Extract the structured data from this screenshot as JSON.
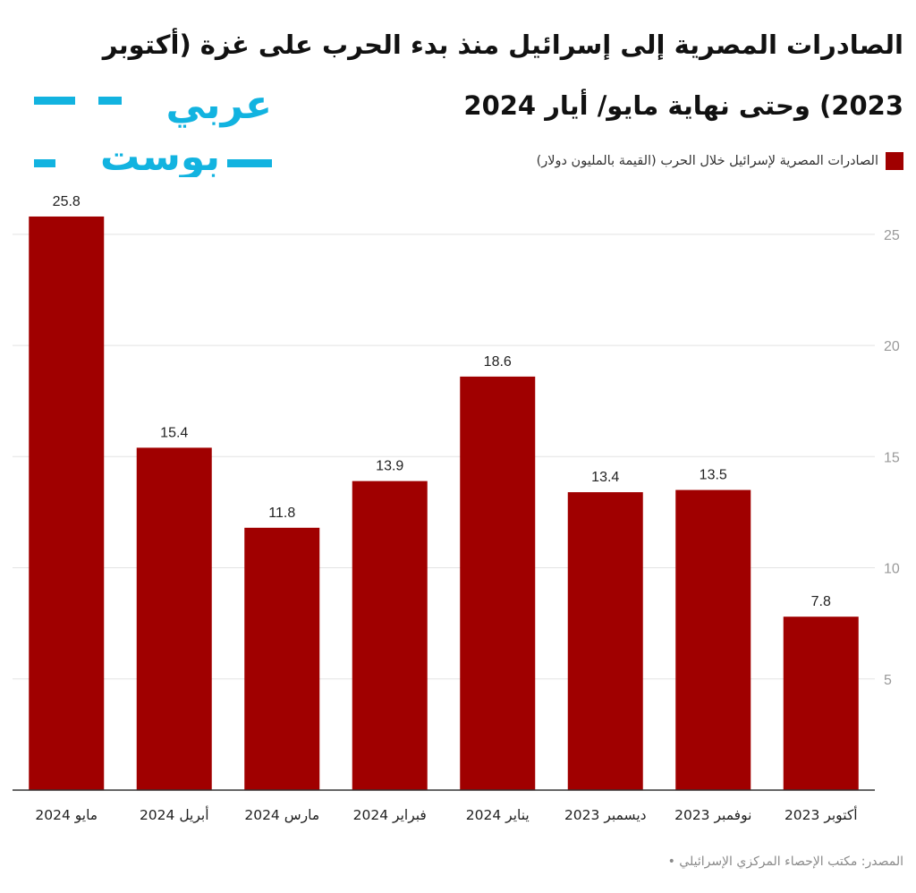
{
  "title": "الصادرات المصرية إلى إسرائيل منذ بدء الحرب على غزة (أكتوبر 2023) وحتى نهاية مايو/ أيار 2024",
  "logo": {
    "text_line1": "عربي",
    "text_line2": "بوست",
    "color": "#12b3e0"
  },
  "source": "المصدر: مكتب الإحصاء المركزي الإسرائيلي •",
  "colors": {
    "bar": "#a00000",
    "grid": "#e3e3e3",
    "axis": "#333333",
    "label": "#222222",
    "tick": "#9a9a9a"
  },
  "chart_data": {
    "type": "bar",
    "categories": [
      "أكتوبر 2023",
      "نوفمبر 2023",
      "ديسمبر 2023",
      "يناير 2024",
      "فبراير 2024",
      "مارس 2024",
      "أبريل 2024",
      "مايو 2024"
    ],
    "series": [
      {
        "name": "الصادرات المصرية لإسرائيل خلال الحرب (القيمة بالمليون دولار)",
        "values": [
          7.8,
          13.5,
          13.4,
          18.6,
          13.9,
          11.8,
          15.4,
          25.8
        ]
      }
    ],
    "ylim": [
      0,
      26
    ],
    "yticks": [
      5,
      10,
      15,
      20,
      25
    ],
    "y_axis_side": "right",
    "category_order": "right-to-left",
    "data_labels": true,
    "grid": true,
    "legend_position": "top-right"
  }
}
